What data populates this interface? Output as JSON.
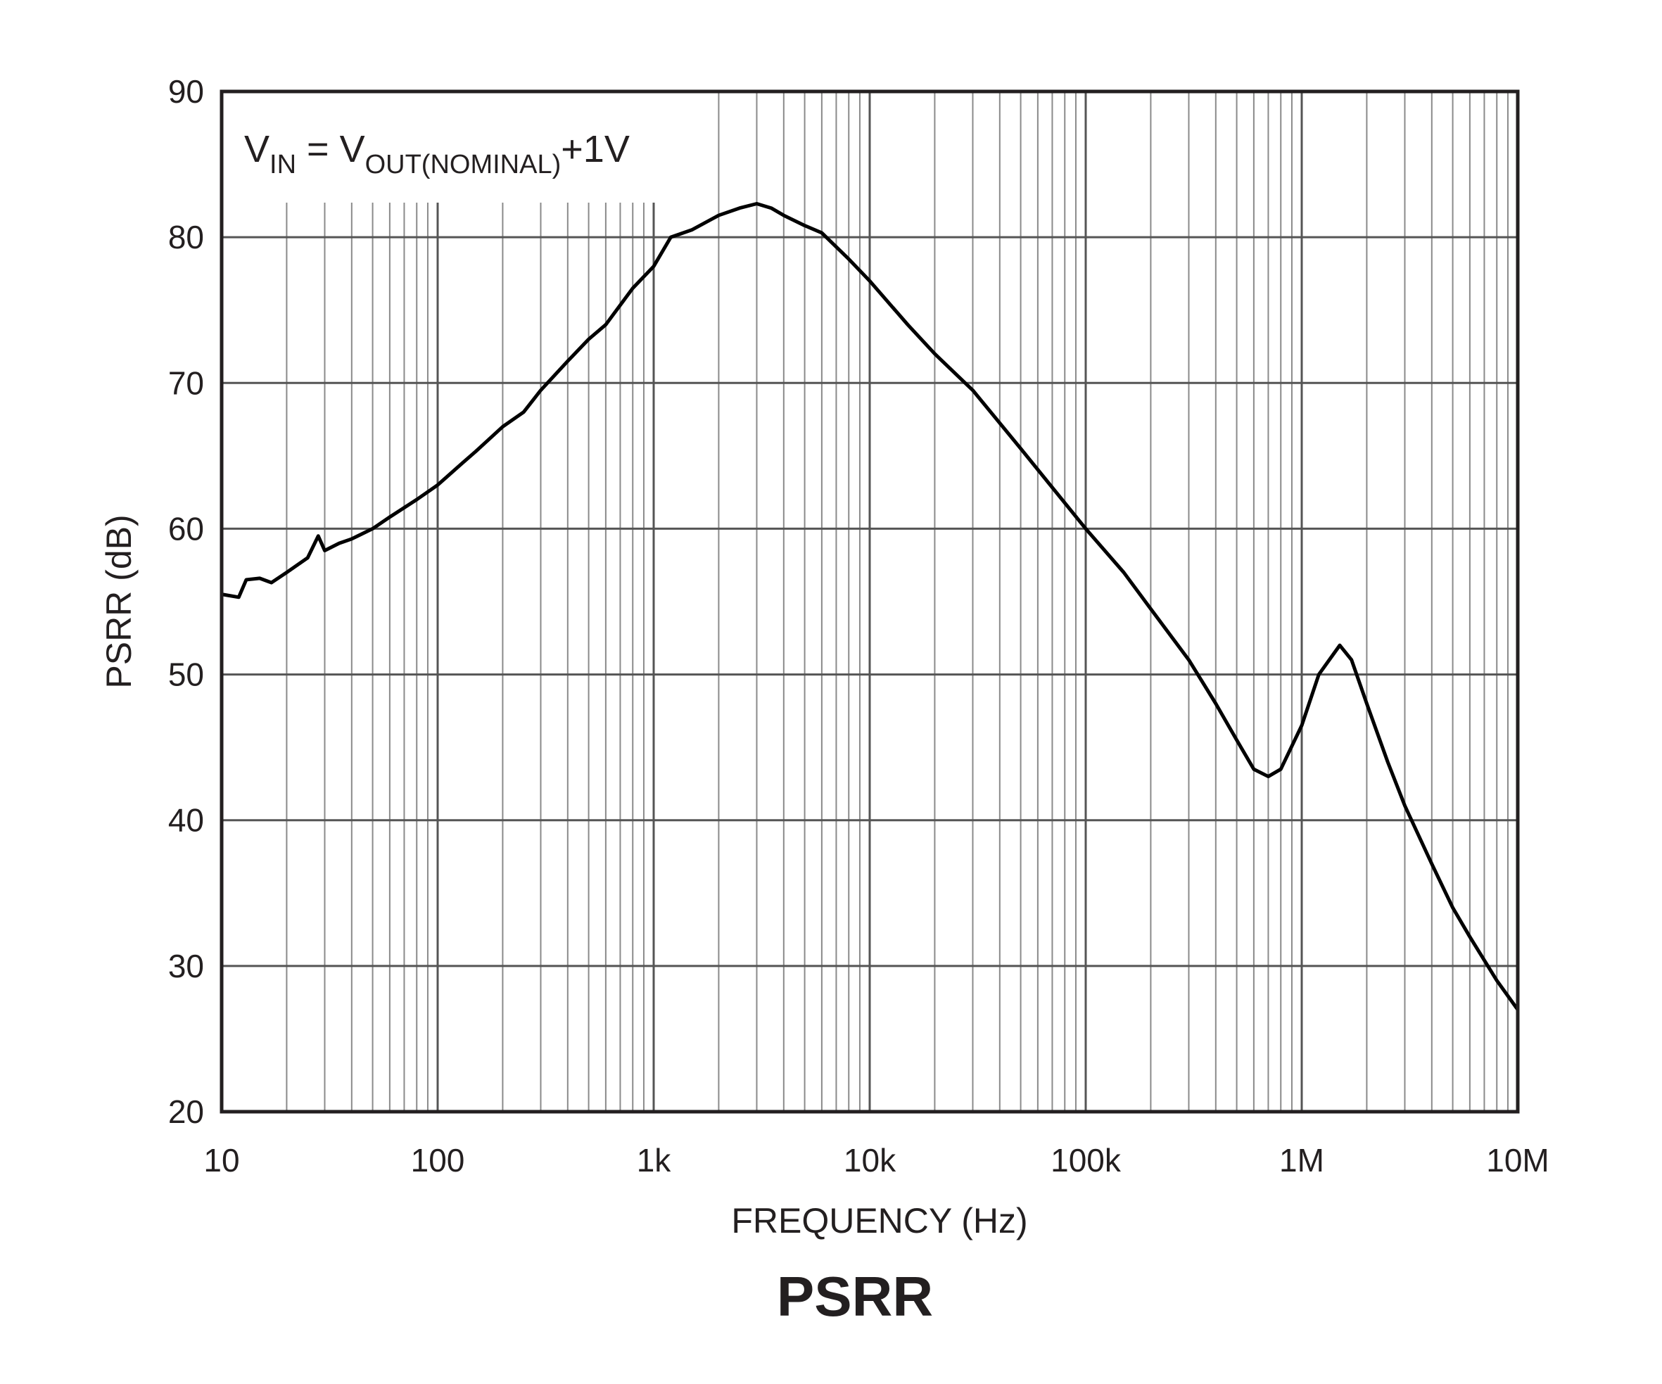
{
  "chart_data": {
    "type": "line",
    "title": "PSRR",
    "x_label": "FREQUENCY (Hz)",
    "y_label": "PSRR (dB)",
    "annotation": [
      {
        "text": "V"
      },
      {
        "text": "IN",
        "sub": true
      },
      {
        "text": " = V"
      },
      {
        "text": "OUT(NOMINAL)",
        "sub": true
      },
      {
        "text": "+1V"
      }
    ],
    "x_log": true,
    "grid": true,
    "minor_grid": true,
    "xlim": [
      10,
      10000000
    ],
    "ylim": [
      20,
      90
    ],
    "xticks": [
      10,
      100,
      {
        "value": 1000,
        "label": "1k"
      },
      {
        "value": 10000,
        "label": "10k"
      },
      {
        "value": 100000,
        "label": "100k"
      },
      {
        "value": 1000000,
        "label": "1M"
      },
      {
        "value": 10000000,
        "label": "10M"
      }
    ],
    "yticks": [
      20,
      30,
      40,
      50,
      60,
      70,
      80,
      90
    ],
    "series": [
      {
        "color": "#000000",
        "x": [
          10,
          12,
          13,
          15,
          17,
          20,
          25,
          28,
          30,
          35,
          40,
          50,
          60,
          80,
          100,
          130,
          150,
          200,
          250,
          300,
          400,
          500,
          600,
          800,
          1000,
          1200,
          1500,
          2000,
          2500,
          3000,
          3500,
          4000,
          5000,
          6000,
          8000,
          10000,
          15000,
          20000,
          30000,
          50000,
          100000,
          150000,
          200000,
          300000,
          400000,
          500000,
          600000,
          700000,
          800000,
          1000000,
          1200000,
          1500000,
          1700000,
          2000000,
          2500000,
          3000000,
          4000000,
          5000000,
          6000000,
          8000000,
          10000000
        ],
        "values": [
          55.5,
          55.3,
          56.5,
          56.6,
          56.3,
          57,
          58,
          59.5,
          58.5,
          59,
          59.3,
          60,
          60.8,
          62,
          63,
          64.5,
          65.3,
          67,
          68,
          69.5,
          71.5,
          73,
          74,
          76.5,
          78,
          80,
          80.5,
          81.5,
          82,
          82.3,
          82,
          81.5,
          80.8,
          80.3,
          78.5,
          77,
          74,
          72,
          69.5,
          65.5,
          60,
          57,
          54.5,
          51,
          48,
          45.5,
          43.5,
          43,
          43.5,
          46.5,
          50,
          52,
          51,
          48,
          44,
          41,
          37,
          34,
          32,
          29,
          27
        ]
      }
    ]
  }
}
